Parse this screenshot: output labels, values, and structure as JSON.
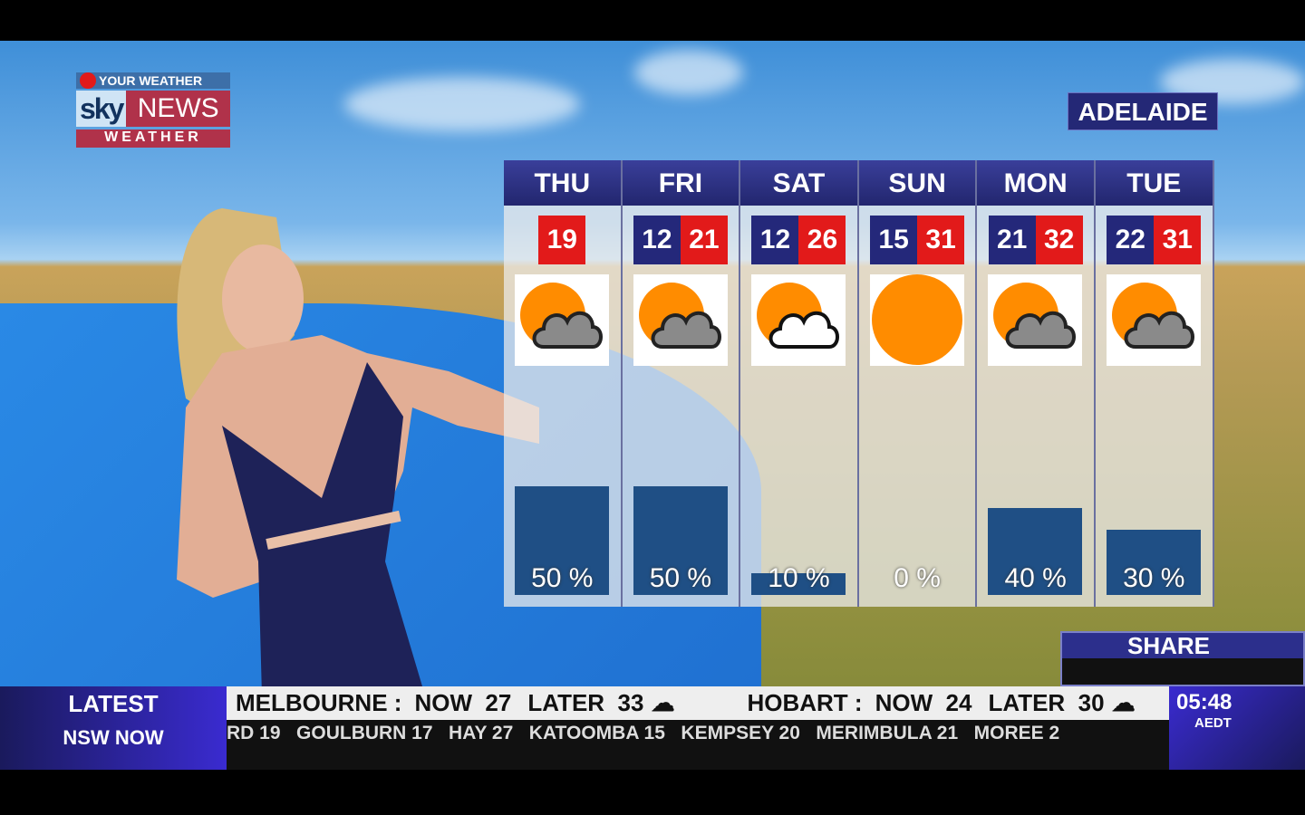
{
  "logo": {
    "top": "YOUR WEATHER",
    "sky": "sky",
    "news": "NEWS",
    "bottom": "WEATHER"
  },
  "location": "ADELAIDE",
  "forecast": [
    {
      "day": "THU",
      "min": null,
      "max": "19",
      "icon": "sun-cloud-icon",
      "rain_pct": 50,
      "rain_label": "50 %"
    },
    {
      "day": "FRI",
      "min": "12",
      "max": "21",
      "icon": "sun-cloud-icon",
      "rain_pct": 50,
      "rain_label": "50 %"
    },
    {
      "day": "SAT",
      "min": "12",
      "max": "26",
      "icon": "sun-white-cloud-icon",
      "rain_pct": 10,
      "rain_label": "10 %"
    },
    {
      "day": "SUN",
      "min": "15",
      "max": "31",
      "icon": "sun-icon",
      "rain_pct": 0,
      "rain_label": "0 %"
    },
    {
      "day": "MON",
      "min": "21",
      "max": "32",
      "icon": "sun-cloud-icon",
      "rain_pct": 40,
      "rain_label": "40 %"
    },
    {
      "day": "TUE",
      "min": "22",
      "max": "31",
      "icon": "sun-cloud-icon",
      "rain_pct": 30,
      "rain_label": "30 %"
    }
  ],
  "share": "SHARE",
  "ticker": {
    "label1": "LATEST",
    "label2": "NSW NOW",
    "items": [
      {
        "city": "MELBOURNE :",
        "now": "NOW  27",
        "later": "LATER  33"
      },
      {
        "city": "HOBART :",
        "now": "NOW  24",
        "later": "LATER  30"
      }
    ],
    "crawl": "RD 19   GOULBURN 17   HAY 27   KATOOMBA 15   KEMPSEY 20   MERIMBULA 21   MOREE 2"
  },
  "clock": {
    "time": "05:48",
    "zone": "AEDT"
  },
  "colors": {
    "navy": "#24287a",
    "red": "#e21a1a",
    "sun": "#ff8c00",
    "bar": "#1f4f85"
  }
}
